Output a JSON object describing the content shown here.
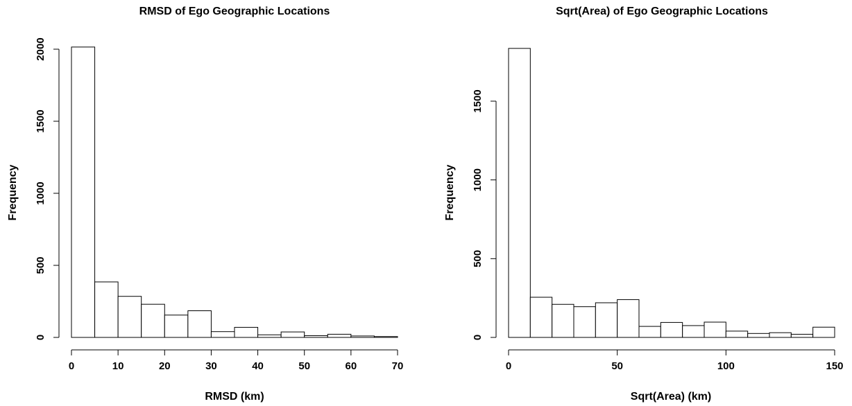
{
  "chart_data": [
    {
      "type": "bar",
      "title": "RMSD of Ego Geographic Locations",
      "xlabel": "RMSD (km)",
      "ylabel": "Frequency",
      "bin_edges": [
        0,
        5,
        10,
        15,
        20,
        25,
        30,
        35,
        40,
        45,
        50,
        55,
        60,
        65,
        70
      ],
      "values": [
        2015,
        385,
        285,
        230,
        155,
        185,
        40,
        70,
        18,
        38,
        12,
        22,
        10,
        6
      ],
      "xlim": [
        0,
        70
      ],
      "ylim": [
        0,
        2000
      ],
      "xticks": [
        0,
        10,
        20,
        30,
        40,
        50,
        60,
        70
      ],
      "yticks": [
        0,
        500,
        1000,
        1500,
        2000
      ],
      "grid": false
    },
    {
      "type": "bar",
      "title": "Sqrt(Area) of Ego Geographic Locations",
      "xlabel": "Sqrt(Area) (km)",
      "ylabel": "Frequency",
      "bin_edges": [
        0,
        10,
        20,
        30,
        40,
        50,
        60,
        70,
        80,
        90,
        100,
        110,
        120,
        130,
        140,
        150
      ],
      "values": [
        1835,
        255,
        210,
        195,
        220,
        240,
        70,
        95,
        75,
        97,
        40,
        25,
        30,
        20,
        65
      ],
      "xlim": [
        0,
        150
      ],
      "ylim": [
        0,
        1500
      ],
      "xticks": [
        0,
        50,
        100,
        150
      ],
      "yticks": [
        0,
        500,
        1000,
        1500
      ],
      "grid": false
    }
  ]
}
